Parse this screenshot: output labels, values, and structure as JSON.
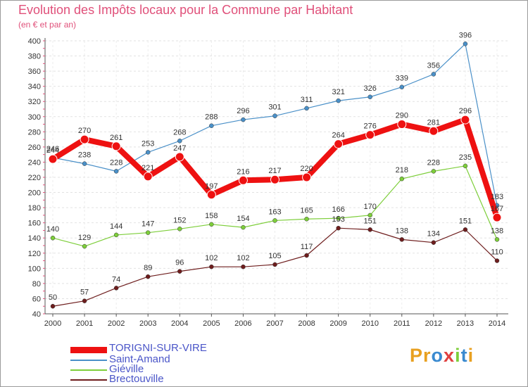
{
  "header": {
    "title": "Evolution des Impôts locaux pour la Commune par Habitant",
    "subtitle": "(en € et par an)"
  },
  "chart_data": {
    "type": "line",
    "title": "Evolution des Impôts locaux pour la Commune par Habitant",
    "subtitle": "(en € et par an)",
    "xlabel": "",
    "ylabel": "",
    "ylim": [
      40,
      400
    ],
    "y_ticks": [
      40,
      60,
      80,
      100,
      120,
      140,
      160,
      180,
      200,
      220,
      240,
      260,
      280,
      300,
      320,
      340,
      360,
      380,
      400
    ],
    "grid": true,
    "legend_position": "bottom-left",
    "categories": [
      "2000",
      "2001",
      "2002",
      "2003",
      "2004",
      "2005",
      "2006",
      "2007",
      "2008",
      "2009",
      "2010",
      "2011",
      "2012",
      "2013",
      "2014"
    ],
    "series": [
      {
        "name": "TORIGNI-SUR-VIRE",
        "color": "#ee1111",
        "values": [
          244,
          270,
          261,
          221,
          247,
          197,
          216,
          217,
          220,
          264,
          276,
          290,
          281,
          296,
          167
        ]
      },
      {
        "name": "Saint-Amand",
        "color": "#4a90c8",
        "values": [
          246,
          238,
          228,
          253,
          268,
          288,
          296,
          301,
          311,
          321,
          326,
          339,
          356,
          396,
          183
        ]
      },
      {
        "name": "Giéville",
        "color": "#7dce3a",
        "values": [
          140,
          129,
          144,
          147,
          152,
          158,
          154,
          163,
          165,
          166,
          170,
          218,
          228,
          235,
          138
        ]
      },
      {
        "name": "Brectouville",
        "color": "#6e1d1d",
        "values": [
          50,
          57,
          74,
          89,
          96,
          102,
          102,
          105,
          117,
          153,
          151,
          138,
          134,
          151,
          110
        ]
      }
    ]
  },
  "legend": {
    "items": [
      {
        "label": "TORIGNI-SUR-VIRE",
        "color": "#ee1111"
      },
      {
        "label": "Saint-Amand",
        "color": "#4a90c8"
      },
      {
        "label": "Giéville",
        "color": "#7dce3a"
      },
      {
        "label": "Brectouville",
        "color": "#6e1d1d"
      }
    ]
  },
  "logo": {
    "letters": [
      "P",
      "r",
      "o",
      "x",
      "i",
      "t",
      "i"
    ],
    "colors": [
      "#e8a020",
      "#e8a020",
      "#3a8ad0",
      "#e04040",
      "#7dce3a",
      "#3a8ad0",
      "#e8a020"
    ]
  }
}
